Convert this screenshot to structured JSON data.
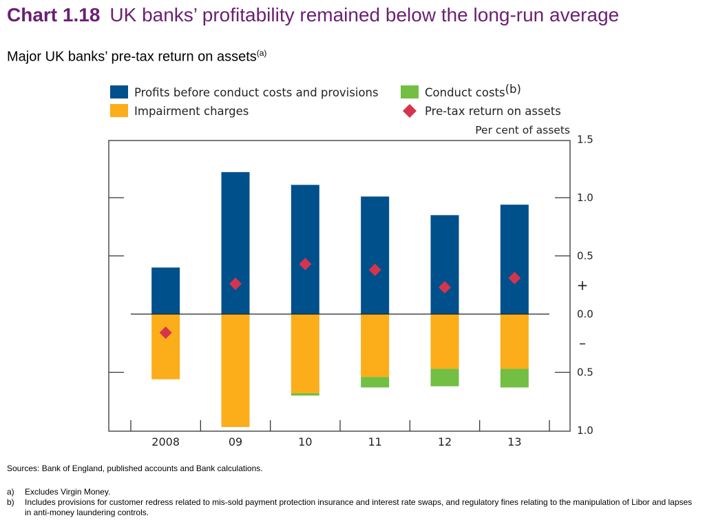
{
  "header": {
    "chart_number": "Chart 1.18",
    "title": "UK banks’ profitability remained below the long-run average",
    "subtitle": "Major UK banks’ pre-tax return on assets",
    "subtitle_note": "(a)"
  },
  "chart_data": {
    "type": "bar",
    "stacked": true,
    "categories": [
      "2008",
      "09",
      "10",
      "11",
      "12",
      "13"
    ],
    "series": [
      {
        "name": "Profits before conduct costs and provisions",
        "color": "#00508c",
        "values": [
          0.4,
          1.22,
          1.11,
          1.01,
          0.85,
          0.94
        ]
      },
      {
        "name": "Impairment charges",
        "color": "#fcad1a",
        "values": [
          -0.56,
          -0.97,
          -0.68,
          -0.54,
          -0.47,
          -0.47
        ]
      },
      {
        "name": "Conduct costs",
        "name_note": "(b)",
        "color": "#72bf44",
        "values": [
          0,
          0,
          -0.02,
          -0.09,
          -0.15,
          -0.16
        ]
      }
    ],
    "markers": {
      "name": "Pre-tax return on assets",
      "color": "#d6344d",
      "values": [
        -0.16,
        0.26,
        0.43,
        0.38,
        0.23,
        0.31
      ]
    },
    "unit_label": "Per cent of assets",
    "ylim": [
      -1.0,
      1.5
    ],
    "yticks": [
      {
        "value": 1.5,
        "label": "1.5"
      },
      {
        "value": 1.0,
        "label": "1.0"
      },
      {
        "value": 0.5,
        "label": "0.5"
      },
      {
        "value": 0.0,
        "label": "0.0"
      },
      {
        "value": -0.5,
        "label": "0.5"
      },
      {
        "value": -1.0,
        "label": "1.0"
      }
    ],
    "plus_sign": "+",
    "minus_sign": "–",
    "legend_position": "top"
  },
  "footer": {
    "sources": "Sources:  Bank of England, published accounts and Bank calculations.",
    "notes": [
      {
        "label": "a)",
        "text": "Excludes Virgin Money."
      },
      {
        "label": "b)",
        "text": "Includes provisions for customer redress related to mis-sold payment protection insurance and interest rate swaps, and regulatory fines relating to the manipulation of Libor and lapses in anti-money laundering controls."
      }
    ]
  }
}
